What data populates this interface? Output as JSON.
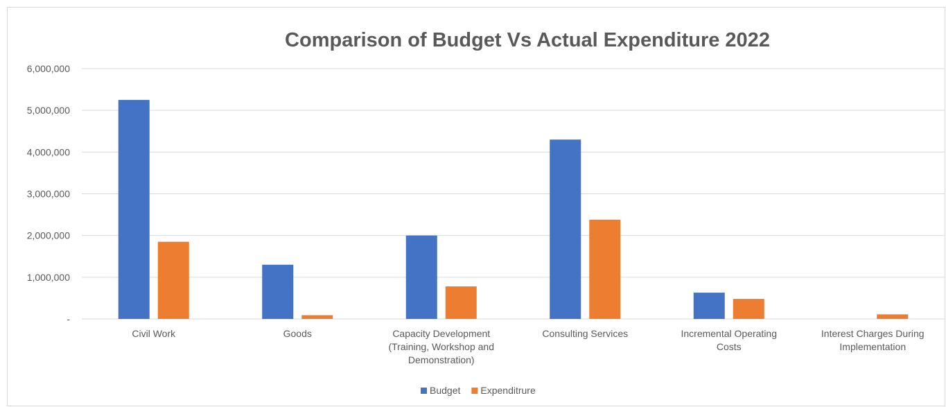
{
  "chart_data": {
    "type": "bar",
    "title": "Comparison of Budget Vs Actual Expenditure 2022",
    "xlabel": "",
    "ylabel": "",
    "ylim": [
      0,
      6000000
    ],
    "yticks": [
      0,
      1000000,
      2000000,
      3000000,
      4000000,
      5000000,
      6000000
    ],
    "ytick_labels": [
      "-",
      "1,000,000",
      "2,000,000",
      "3,000,000",
      "4,000,000",
      "5,000,000",
      "6,000,000"
    ],
    "categories": [
      [
        "Civil Work"
      ],
      [
        "Goods"
      ],
      [
        "Capacity Development",
        "(Training, Workshop and",
        "Demonstration)"
      ],
      [
        "Consulting Services"
      ],
      [
        "Incremental Operating",
        "Costs"
      ],
      [
        "Interest Charges During",
        "Implementation"
      ]
    ],
    "series": [
      {
        "name": "Budget",
        "color": "#4472c4",
        "values": [
          5250000,
          1300000,
          2000000,
          4300000,
          630000,
          0
        ]
      },
      {
        "name": "Expenditrure",
        "color": "#ed7d31",
        "values": [
          1850000,
          90000,
          780000,
          2380000,
          480000,
          110000
        ]
      }
    ],
    "grid": true,
    "legend_position": "bottom"
  }
}
